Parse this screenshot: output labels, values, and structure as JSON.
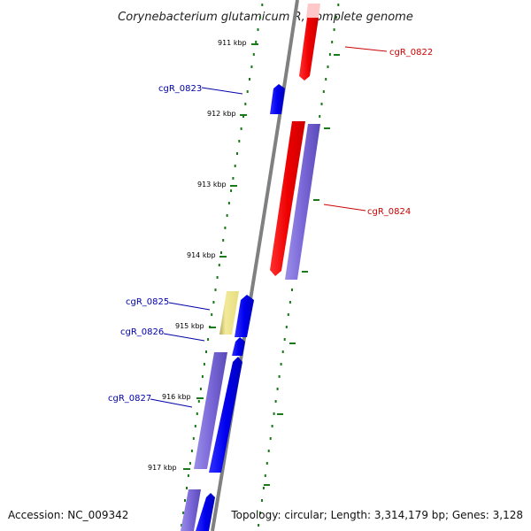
{
  "title": "Corynebacterium glutamicum R, complete genome",
  "accession": "Accession: NC_009342",
  "topology": "Topology: circular; Length: 3,314,179 bp; Genes: 3,128",
  "colors": {
    "backbone": "#808080",
    "tick": "#1a7a1a",
    "forward_gene": "#0000ff",
    "reverse_gene": "#ff0000",
    "forward_label": "#0000aa",
    "reverse_label": "#cc0000",
    "cds_forward": "#7b68d8",
    "cds_reverse": "#7b68d8",
    "other_feature": "#eee68c"
  },
  "ticks": [
    {
      "label": "911 kbp"
    },
    {
      "label": "912 kbp"
    },
    {
      "label": "913 kbp"
    },
    {
      "label": "914 kbp"
    },
    {
      "label": "915 kbp"
    },
    {
      "label": "916 kbp"
    },
    {
      "label": "917 kbp"
    }
  ],
  "genes": [
    {
      "name": "cgR_0822",
      "strand": "reverse"
    },
    {
      "name": "cgR_0823",
      "strand": "forward"
    },
    {
      "name": "cgR_0824",
      "strand": "reverse"
    },
    {
      "name": "cgR_0825",
      "strand": "forward"
    },
    {
      "name": "cgR_0826",
      "strand": "forward"
    },
    {
      "name": "cgR_0827",
      "strand": "forward"
    }
  ]
}
